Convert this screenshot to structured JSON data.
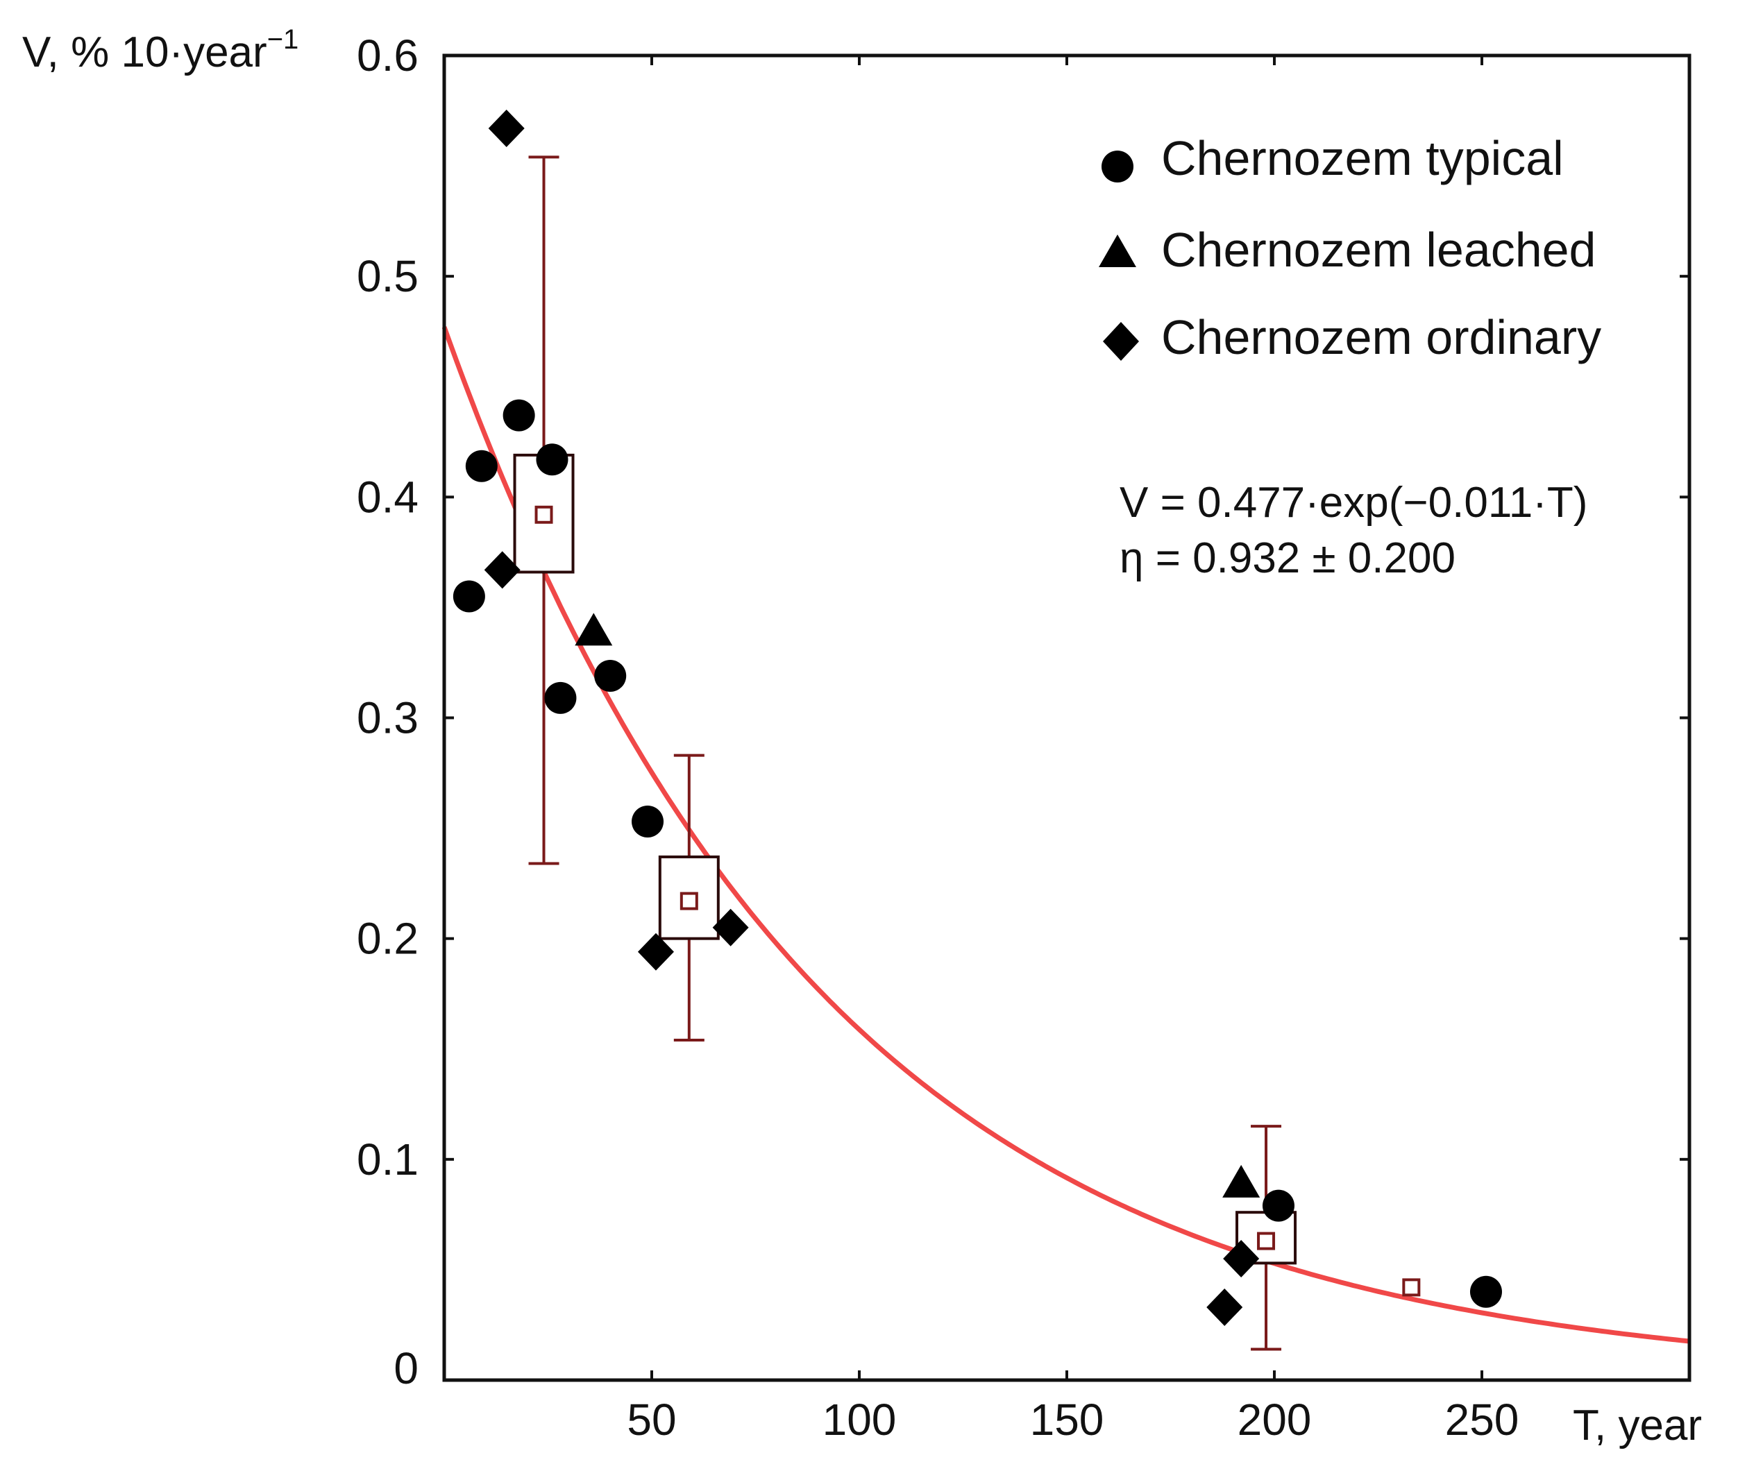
{
  "chart_data": {
    "type": "scatter",
    "ylabel": "V, % 10·year",
    "ylabel_superscript": "−1",
    "xlabel": "T, year",
    "xlim": [
      0,
      300
    ],
    "ylim": [
      0,
      0.6
    ],
    "x_ticks": [
      {
        "value": 50,
        "label": "50"
      },
      {
        "value": 100,
        "label": "100"
      },
      {
        "value": 150,
        "label": "150"
      },
      {
        "value": 200,
        "label": "200"
      },
      {
        "value": 250,
        "label": "250"
      }
    ],
    "y_ticks": [
      {
        "value": 0,
        "label": "0"
      },
      {
        "value": 0.1,
        "label": "0.1"
      },
      {
        "value": 0.2,
        "label": "0.2"
      },
      {
        "value": 0.3,
        "label": "0.3"
      },
      {
        "value": 0.4,
        "label": "0.4"
      },
      {
        "value": 0.5,
        "label": "0.5"
      },
      {
        "value": 0.6,
        "label": "0.6"
      }
    ],
    "legend_position": "top-right",
    "series": [
      {
        "name": "Chernozem typical",
        "marker": "circle",
        "color": "#000000",
        "points": [
          {
            "x": 6,
            "y": 0.355
          },
          {
            "x": 9,
            "y": 0.414
          },
          {
            "x": 18,
            "y": 0.437
          },
          {
            "x": 26,
            "y": 0.417
          },
          {
            "x": 28,
            "y": 0.309
          },
          {
            "x": 40,
            "y": 0.319
          },
          {
            "x": 49,
            "y": 0.253
          },
          {
            "x": 201,
            "y": 0.079
          },
          {
            "x": 251,
            "y": 0.04
          }
        ]
      },
      {
        "name": "Chernozem leached",
        "marker": "triangle",
        "color": "#000000",
        "points": [
          {
            "x": 36,
            "y": 0.339
          },
          {
            "x": 192,
            "y": 0.089
          }
        ]
      },
      {
        "name": "Chernozem ordinary",
        "marker": "diamond",
        "color": "#000000",
        "points": [
          {
            "x": 15,
            "y": 0.567
          },
          {
            "x": 14,
            "y": 0.367
          },
          {
            "x": 51,
            "y": 0.194
          },
          {
            "x": 69,
            "y": 0.205
          },
          {
            "x": 188,
            "y": 0.033
          },
          {
            "x": 192,
            "y": 0.055
          }
        ]
      }
    ],
    "box_whiskers": {
      "color": "#7a1a1a",
      "groups": [
        {
          "x": 24,
          "mean": 0.392,
          "box_low": 0.366,
          "box_high": 0.419,
          "whisker_low": 0.234,
          "whisker_high": 0.554
        },
        {
          "x": 59,
          "mean": 0.217,
          "box_low": 0.2,
          "box_high": 0.237,
          "whisker_low": 0.154,
          "whisker_high": 0.283
        },
        {
          "x": 198,
          "mean": 0.063,
          "box_low": 0.053,
          "box_high": 0.076,
          "whisker_low": 0.014,
          "whisker_high": 0.115
        },
        {
          "x": 233,
          "mean": 0.042
        }
      ]
    },
    "fit": {
      "a": 0.477,
      "b": -0.011,
      "color": "#f04848",
      "equation": "V = 0.477·exp(−0.011·T)",
      "eta": "η = 0.932 ± 0.200"
    }
  }
}
